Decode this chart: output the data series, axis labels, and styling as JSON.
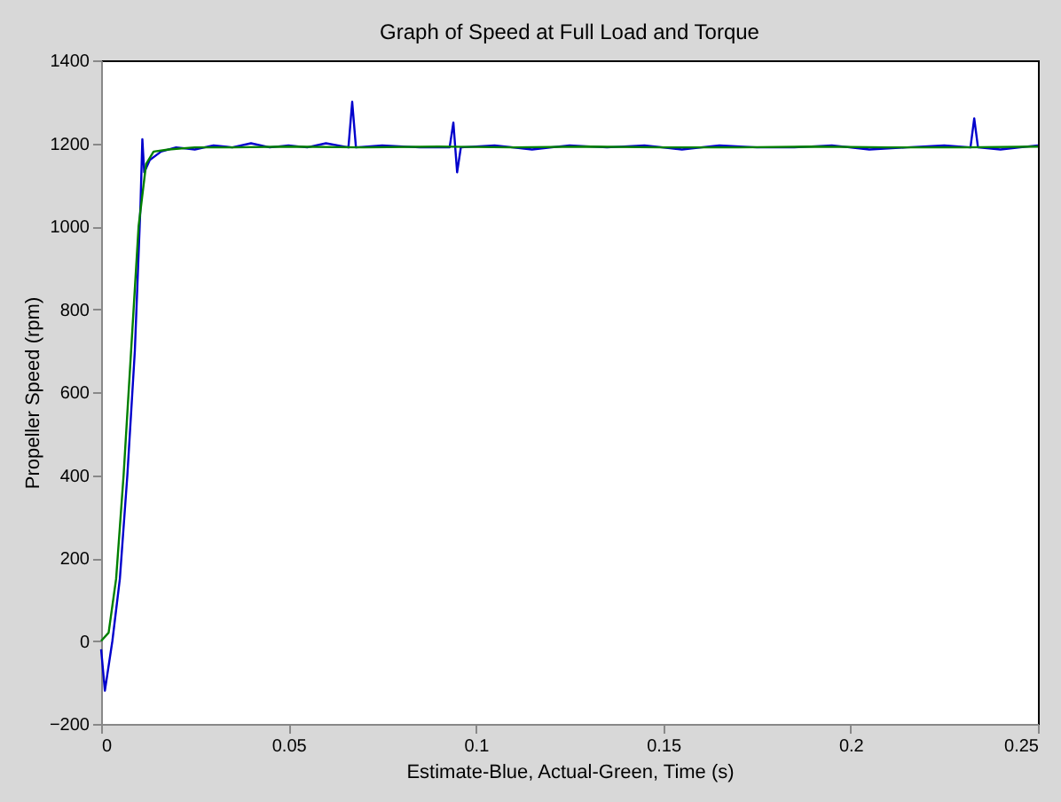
{
  "chart_data": {
    "type": "line",
    "title": "Graph of Speed at Full Load and Torque",
    "xlabel": "Estimate-Blue, Actual-Green, Time (s)",
    "ylabel": "Propeller Speed (rpm)",
    "xlim": [
      0,
      0.25
    ],
    "xticks": [
      0,
      0.05,
      0.1,
      0.15,
      0.2,
      0.25
    ],
    "ylim": [
      -200,
      1400
    ],
    "yticks": [
      -200,
      0,
      200,
      400,
      600,
      800,
      1000,
      1200,
      1400
    ],
    "grid": false,
    "series": [
      {
        "color": "#0000cc",
        "x": [
          0,
          0.001,
          0.003,
          0.005,
          0.007,
          0.009,
          0.0105,
          0.011,
          0.0115,
          0.013,
          0.016,
          0.02,
          0.025,
          0.03,
          0.035,
          0.04,
          0.045,
          0.05,
          0.055,
          0.06,
          0.066,
          0.067,
          0.068,
          0.075,
          0.085,
          0.093,
          0.094,
          0.095,
          0.096,
          0.105,
          0.115,
          0.125,
          0.135,
          0.145,
          0.155,
          0.165,
          0.175,
          0.185,
          0.195,
          0.205,
          0.215,
          0.225,
          0.232,
          0.233,
          0.234,
          0.24,
          0.25
        ],
        "values": [
          -20,
          -120,
          0,
          150,
          400,
          700,
          1050,
          1210,
          1130,
          1160,
          1180,
          1190,
          1185,
          1195,
          1190,
          1200,
          1190,
          1195,
          1190,
          1200,
          1190,
          1300,
          1190,
          1195,
          1190,
          1190,
          1250,
          1130,
          1190,
          1195,
          1185,
          1195,
          1190,
          1195,
          1185,
          1195,
          1190,
          1190,
          1195,
          1185,
          1190,
          1195,
          1190,
          1260,
          1190,
          1185,
          1195
        ]
      },
      {
        "color": "#008000",
        "x": [
          0,
          0.002,
          0.004,
          0.006,
          0.008,
          0.01,
          0.012,
          0.014,
          0.018,
          0.025,
          0.035,
          0.05,
          0.07,
          0.09,
          0.11,
          0.13,
          0.15,
          0.17,
          0.19,
          0.21,
          0.23,
          0.25
        ],
        "values": [
          0,
          20,
          150,
          400,
          700,
          1000,
          1150,
          1180,
          1185,
          1190,
          1190,
          1192,
          1190,
          1192,
          1190,
          1192,
          1190,
          1190,
          1192,
          1190,
          1190,
          1192
        ]
      }
    ]
  }
}
